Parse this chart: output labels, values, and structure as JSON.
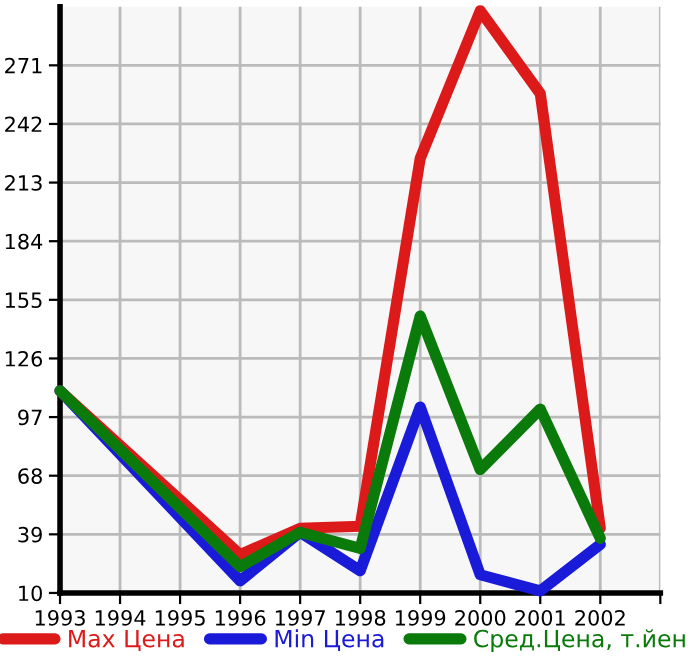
{
  "chart_data": {
    "type": "line",
    "x": [
      1993,
      1996,
      1997,
      1998,
      1999,
      2000,
      2001,
      2002
    ],
    "series": [
      {
        "name": "Max Цена",
        "color": "#dd1a1a",
        "values": [
          110,
          29,
          42,
          43,
          225,
          298,
          257,
          42
        ]
      },
      {
        "name": "Min Цена",
        "color": "#1a1ad9",
        "values": [
          110,
          16,
          40,
          21,
          102,
          19,
          11,
          34
        ]
      },
      {
        "name": "Сред.Цена, т.йен",
        "color": "#0a7a0a",
        "values": [
          110,
          23,
          40,
          32,
          147,
          71,
          101,
          37
        ]
      }
    ],
    "xlim": [
      1993,
      2003
    ],
    "xticks": [
      1993,
      1994,
      1995,
      1996,
      1997,
      1998,
      1999,
      2000,
      2001,
      2002,
      {
        "value": 2003,
        "label": null
      }
    ],
    "ylim": [
      10,
      300
    ],
    "yticks": [
      10,
      39,
      68,
      97,
      126,
      155,
      184,
      213,
      242,
      271
    ],
    "grid": true,
    "legend": "bottom",
    "marker": "none",
    "line_style": "solid"
  }
}
